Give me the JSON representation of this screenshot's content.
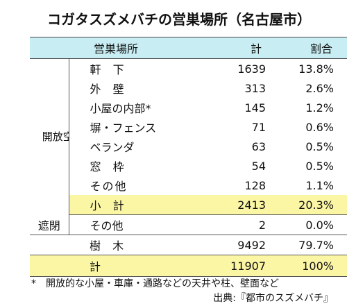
{
  "title": "コガタスズメバチの営巣場所（名古屋市）",
  "header": {
    "place": "営巣場所",
    "count": "計",
    "ratio": "割合"
  },
  "groups": {
    "open": "開放空間",
    "closed": "遮閉"
  },
  "open_rows": [
    {
      "label": "軒 下",
      "count": "1639",
      "ratio": "13.8%"
    },
    {
      "label": "外 壁",
      "count": "313",
      "ratio": "2.6%"
    },
    {
      "label": "小屋の内部*",
      "count": "145",
      "ratio": "1.2%"
    },
    {
      "label": "塀・フェンス",
      "count": "71",
      "ratio": "0.6%"
    },
    {
      "label": "ベランダ",
      "count": "63",
      "ratio": "0.5%"
    },
    {
      "label": "窓 枠",
      "count": "54",
      "ratio": "0.5%"
    },
    {
      "label": "その他",
      "count": "128",
      "ratio": "1.1%"
    }
  ],
  "subtotal": {
    "label": "小 計",
    "count": "2413",
    "ratio": "20.3%"
  },
  "closed_row": {
    "label": "その他",
    "count": "2",
    "ratio": "0.0%"
  },
  "tree_row": {
    "label": "樹 木",
    "count": "9492",
    "ratio": "79.7%"
  },
  "total_row": {
    "label": "計",
    "count": "11907",
    "ratio": "100%"
  },
  "footnote": "*　開放的な小屋・車庫・通路などの天井や柱、壁面など",
  "source": "出典:『都市のスズメバチ』",
  "colors": {
    "header_bg": "#c8eef3",
    "highlight_bg": "#fbf6a4"
  }
}
